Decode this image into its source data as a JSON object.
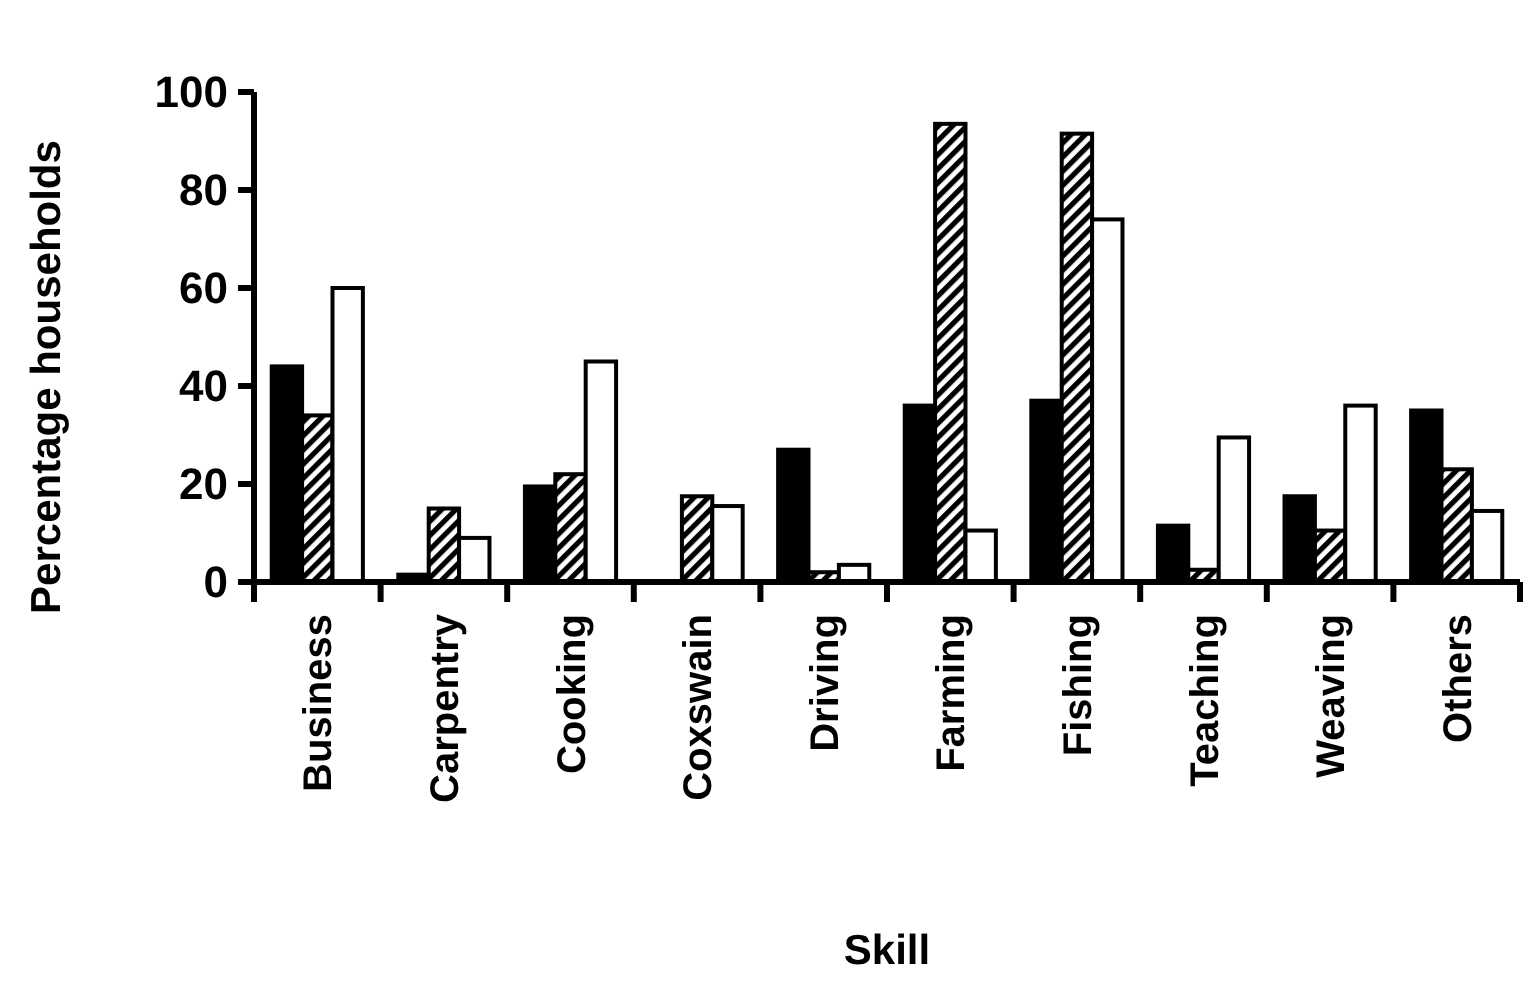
{
  "chart_data": {
    "type": "bar",
    "xlabel": "Skill",
    "ylabel": "Percentage households",
    "categories": [
      "Business",
      "Carpentry",
      "Cooking",
      "Coxswain",
      "Driving",
      "Farming",
      "Fishing",
      "Teaching",
      "Weaving",
      "Others"
    ],
    "series": [
      {
        "color": "#000000",
        "values": [
          44,
          1.5,
          19.5,
          0,
          27,
          36,
          37,
          11.5,
          17.5,
          35
        ]
      },
      {
        "color": "#000000",
        "values": [
          34,
          15,
          22,
          17.5,
          2,
          93.5,
          91.5,
          2.5,
          10.5,
          23
        ]
      },
      {
        "color": "#ffffff",
        "values": [
          60,
          9,
          45,
          15.5,
          3.5,
          10.5,
          74,
          29.5,
          36,
          14.5
        ]
      }
    ],
    "ylim": [
      0,
      100
    ],
    "yticks": [
      0,
      20,
      40,
      60,
      80,
      100
    ],
    "grid": false
  }
}
